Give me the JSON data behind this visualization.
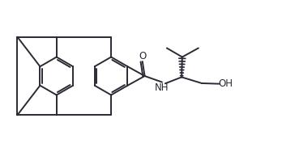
{
  "bg_color": "#ffffff",
  "line_color": "#2a2a35",
  "bond_lw": 1.4,
  "figsize": [
    3.64,
    1.88
  ],
  "dpi": 100,
  "xlim": [
    0,
    10.5
  ],
  "ylim": [
    0,
    5.2
  ]
}
